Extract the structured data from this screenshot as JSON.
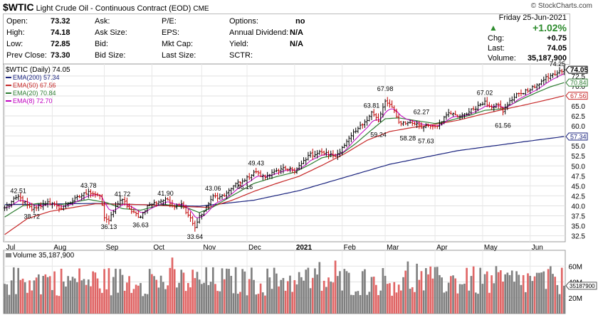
{
  "header": {
    "symbol": "$WTIC",
    "name": "Light Crude Oil - Continuous Contract (EOD)",
    "exchange": "CME",
    "credit": "© StockCharts.com"
  },
  "quote": {
    "col1": [
      {
        "label": "Open:",
        "value": "73.32"
      },
      {
        "label": "High:",
        "value": "74.18"
      },
      {
        "label": "Low:",
        "value": "72.85"
      },
      {
        "label": "Prev Close:",
        "value": "73.30"
      }
    ],
    "col2": [
      "Ask:",
      "Ask Size:",
      "Bid:",
      "Bid Size:"
    ],
    "col3": [
      "P/E:",
      "EPS:",
      "Mkt Cap:",
      "Last Size:"
    ],
    "col4": [
      {
        "label": "Options:",
        "value": "no"
      },
      {
        "label": "Annual Dividend:",
        "value": "N/A"
      },
      {
        "label": "Yield:",
        "value": "N/A"
      },
      {
        "label": "SCTR:",
        "value": ""
      }
    ],
    "date": "Friday  25-Jun-2021",
    "change_pct": "+1.02%",
    "stats": [
      {
        "label": "Chg:",
        "value": "+0.75"
      },
      {
        "label": "Last:",
        "value": "74.05"
      },
      {
        "label": "Volume:",
        "value": "35,187,900"
      }
    ],
    "up_color": "#2d8b2d"
  },
  "chart_data": {
    "type": "line",
    "title": "$WTIC (Daily) 74.05",
    "legend": [
      {
        "name": "EMA(200) 57.34",
        "color": "#1a237e"
      },
      {
        "name": "EMA(50) 67.56",
        "color": "#c62828"
      },
      {
        "name": "EMA(20) 70.84",
        "color": "#2e7d32"
      },
      {
        "name": "EMA(8) 72.70",
        "color": "#c000c0"
      }
    ],
    "x_labels": [
      "Jul",
      "Aug",
      "Sep",
      "Oct",
      "Nov",
      "Dec",
      "2021",
      "Feb",
      "Mar",
      "Apr",
      "May",
      "Jun"
    ],
    "x_label_pos": [
      0,
      21,
      44,
      65,
      87,
      107,
      128,
      149,
      168,
      190,
      211,
      232
    ],
    "y_ticks": [
      32.5,
      35.0,
      37.5,
      40.0,
      42.5,
      45.0,
      47.5,
      50.0,
      52.5,
      55.0,
      57.5,
      60.0,
      62.5,
      65.0,
      67.5,
      70.0,
      72.5
    ],
    "ylim": [
      31.0,
      75.5
    ],
    "anchors": [
      [
        0,
        39.5
      ],
      [
        6,
        42.4
      ],
      [
        12,
        39.0
      ],
      [
        19,
        41.0
      ],
      [
        24,
        39.3
      ],
      [
        37,
        43.6
      ],
      [
        42,
        42.5
      ],
      [
        44,
        37.0
      ],
      [
        46,
        36.3
      ],
      [
        49,
        40.0
      ],
      [
        52,
        41.6
      ],
      [
        56,
        38.5
      ],
      [
        60,
        37.2
      ],
      [
        63,
        40.0
      ],
      [
        71,
        41.7
      ],
      [
        74,
        40.0
      ],
      [
        78,
        40.5
      ],
      [
        82,
        37.0
      ],
      [
        84,
        34.5
      ],
      [
        86,
        37.5
      ],
      [
        88,
        38.6
      ],
      [
        92,
        42.5
      ],
      [
        94,
        41.8
      ],
      [
        98,
        43.2
      ],
      [
        102,
        45.6
      ],
      [
        106,
        46.4
      ],
      [
        111,
        48.5
      ],
      [
        115,
        47.1
      ],
      [
        120,
        48.8
      ],
      [
        126,
        49.4
      ],
      [
        128,
        48.4
      ],
      [
        134,
        52.6
      ],
      [
        140,
        53.4
      ],
      [
        146,
        52.4
      ],
      [
        149,
        54.6
      ],
      [
        155,
        58.7
      ],
      [
        159,
        61.0
      ],
      [
        162,
        63.5
      ],
      [
        165,
        61.2
      ],
      [
        168,
        66.2
      ],
      [
        171,
        64.7
      ],
      [
        174,
        60.9
      ],
      [
        178,
        60.8
      ],
      [
        182,
        60.6
      ],
      [
        184,
        59.5
      ],
      [
        186,
        60.3
      ],
      [
        190,
        59.9
      ],
      [
        193,
        61.0
      ],
      [
        196,
        63.3
      ],
      [
        200,
        62.3
      ],
      [
        205,
        63.5
      ],
      [
        212,
        66.2
      ],
      [
        214,
        64.9
      ],
      [
        218,
        65.3
      ],
      [
        220,
        63.5
      ],
      [
        223,
        66.3
      ],
      [
        227,
        68.1
      ],
      [
        232,
        69.0
      ],
      [
        235,
        70.3
      ],
      [
        238,
        71.5
      ],
      [
        241,
        72.6
      ],
      [
        244,
        73.2
      ],
      [
        247,
        74.05
      ]
    ],
    "ema": {
      "ema200": [
        [
          0,
          40.3
        ],
        [
          40,
          40.6
        ],
        [
          86,
          39.9
        ],
        [
          110,
          41.4
        ],
        [
          130,
          43.8
        ],
        [
          150,
          47.1
        ],
        [
          170,
          50.4
        ],
        [
          200,
          53.8
        ],
        [
          230,
          56.1
        ],
        [
          247,
          57.34
        ]
      ],
      "ema50": [
        [
          0,
          32.8
        ],
        [
          10,
          36.8
        ],
        [
          20,
          38.6
        ],
        [
          40,
          40.5
        ],
        [
          60,
          40.3
        ],
        [
          80,
          39.8
        ],
        [
          90,
          39.6
        ],
        [
          100,
          41.3
        ],
        [
          110,
          43.6
        ],
        [
          120,
          45.6
        ],
        [
          130,
          47.4
        ],
        [
          140,
          50.1
        ],
        [
          150,
          53.0
        ],
        [
          160,
          56.4
        ],
        [
          170,
          58.6
        ],
        [
          180,
          59.6
        ],
        [
          190,
          60.4
        ],
        [
          200,
          61.4
        ],
        [
          210,
          62.8
        ],
        [
          220,
          64.1
        ],
        [
          230,
          65.3
        ],
        [
          240,
          66.6
        ],
        [
          247,
          67.56
        ]
      ],
      "ema20": [
        [
          0,
          37.2
        ],
        [
          8,
          40.0
        ],
        [
          15,
          40.6
        ],
        [
          25,
          40.3
        ],
        [
          37,
          41.6
        ],
        [
          45,
          40.8
        ],
        [
          52,
          39.3
        ],
        [
          60,
          38.9
        ],
        [
          70,
          40.4
        ],
        [
          80,
          39.6
        ],
        [
          86,
          38.3
        ],
        [
          92,
          39.7
        ],
        [
          100,
          42.4
        ],
        [
          110,
          45.6
        ],
        [
          120,
          47.3
        ],
        [
          128,
          48.4
        ],
        [
          135,
          50.4
        ],
        [
          140,
          52.0
        ],
        [
          149,
          53.1
        ],
        [
          155,
          55.6
        ],
        [
          162,
          59.0
        ],
        [
          168,
          61.8
        ],
        [
          174,
          62.0
        ],
        [
          182,
          61.3
        ],
        [
          190,
          60.6
        ],
        [
          196,
          61.3
        ],
        [
          205,
          62.6
        ],
        [
          212,
          63.9
        ],
        [
          220,
          64.3
        ],
        [
          228,
          66.6
        ],
        [
          235,
          68.4
        ],
        [
          241,
          69.8
        ],
        [
          247,
          70.84
        ]
      ]
    },
    "annotations": [
      {
        "x": 6,
        "value": 42.51,
        "pos": "above"
      },
      {
        "x": 12,
        "value": 38.72,
        "pos": "below"
      },
      {
        "x": 37,
        "value": 43.78,
        "pos": "above"
      },
      {
        "x": 46,
        "value": 36.13,
        "pos": "below"
      },
      {
        "x": 52,
        "value": 41.72,
        "pos": "above"
      },
      {
        "x": 60,
        "value": 36.63,
        "pos": "below"
      },
      {
        "x": 71,
        "value": 41.9,
        "pos": "above"
      },
      {
        "x": 84,
        "value": 33.64,
        "pos": "below"
      },
      {
        "x": 92,
        "value": 43.06,
        "pos": "above"
      },
      {
        "x": 106,
        "value": 46.16,
        "pos": "below"
      },
      {
        "x": 111,
        "value": 49.43,
        "pos": "above"
      },
      {
        "x": 162,
        "value": 63.81,
        "pos": "above"
      },
      {
        "x": 168,
        "value": 67.98,
        "pos": "above"
      },
      {
        "x": 165,
        "value": 59.24,
        "pos": "below"
      },
      {
        "x": 178,
        "value": 58.28,
        "pos": "below"
      },
      {
        "x": 184,
        "value": 62.27,
        "pos": "above"
      },
      {
        "x": 186,
        "value": 57.63,
        "pos": "below"
      },
      {
        "x": 212,
        "value": 67.02,
        "pos": "above"
      },
      {
        "x": 220,
        "value": 61.56,
        "pos": "below"
      },
      {
        "x": 244,
        "value": 74.25,
        "pos": "above"
      }
    ],
    "last_label": "74.05",
    "right_tags": [
      {
        "text": "74.05",
        "value": 74.05,
        "color": "#000000"
      },
      {
        "text": "70.84",
        "value": 70.84,
        "color": "#2e7d32"
      },
      {
        "text": "67.56",
        "value": 67.56,
        "color": "#c62828"
      },
      {
        "text": "57.34",
        "value": 57.34,
        "color": "#1a237e"
      }
    ],
    "volume": {
      "label": "Volume 35,187,900",
      "ticks": [
        "60M",
        "40M",
        "20M"
      ],
      "tick_values": [
        60,
        40,
        20
      ],
      "ylim": [
        0,
        80
      ],
      "last_tag": "35187900",
      "last_value": 35.2
    }
  }
}
